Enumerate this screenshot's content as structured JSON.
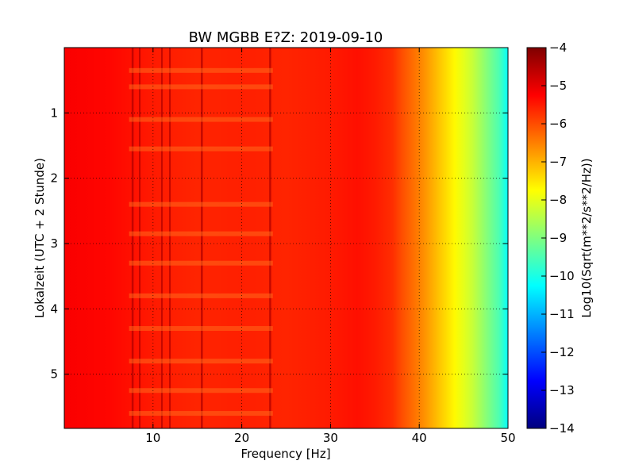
{
  "chart_data": {
    "type": "heatmap",
    "title": "BW MGBB E?Z: 2019-09-10",
    "xlabel": "Frequency [Hz]",
    "ylabel": "Lokalzeit (UTC + 2 Stunde)",
    "xlim": [
      0,
      50
    ],
    "ylim": [
      0,
      5.83
    ],
    "y_inverted": true,
    "grid": true,
    "x_ticks": [
      10,
      20,
      30,
      40,
      50
    ],
    "x_tick_labels": [
      "10",
      "20",
      "30",
      "40",
      "50"
    ],
    "y_ticks": [
      1,
      2,
      3,
      4,
      5
    ],
    "y_tick_labels": [
      "1",
      "2",
      "3",
      "4",
      "5"
    ],
    "colormap": "jet",
    "colorbar": {
      "label": "Log10(Sqrt(m**2/s**2/Hz))",
      "min": -14,
      "max": -4,
      "ticks": [
        -4,
        -5,
        -6,
        -7,
        -8,
        -9,
        -10,
        -11,
        -12,
        -13,
        -14
      ],
      "tick_labels": [
        "−4",
        "−5",
        "−6",
        "−7",
        "−8",
        "−9",
        "−10",
        "−11",
        "−12",
        "−13",
        "−14"
      ]
    },
    "spectrum_profile": {
      "frequency_hz": [
        0,
        5,
        10,
        15,
        20,
        25,
        30,
        33,
        35,
        37,
        38,
        40,
        41,
        42,
        43,
        44,
        45,
        46,
        47,
        48,
        49,
        50
      ],
      "log10_amplitude": [
        -5.2,
        -5.3,
        -5.5,
        -5.6,
        -5.55,
        -5.6,
        -5.5,
        -5.4,
        -5.5,
        -5.7,
        -6.0,
        -6.5,
        -6.8,
        -7.1,
        -7.4,
        -7.7,
        -8.0,
        -8.3,
        -8.7,
        -9.1,
        -9.5,
        -10.2
      ]
    },
    "spectral_lines_hz": [
      7.7,
      8.5,
      11.0,
      11.9,
      15.5,
      23.2
    ],
    "time_bands_hours": [
      0.35,
      0.6,
      1.1,
      1.55,
      2.4,
      2.85,
      3.3,
      3.8,
      4.3,
      4.8,
      5.25,
      5.6
    ]
  }
}
